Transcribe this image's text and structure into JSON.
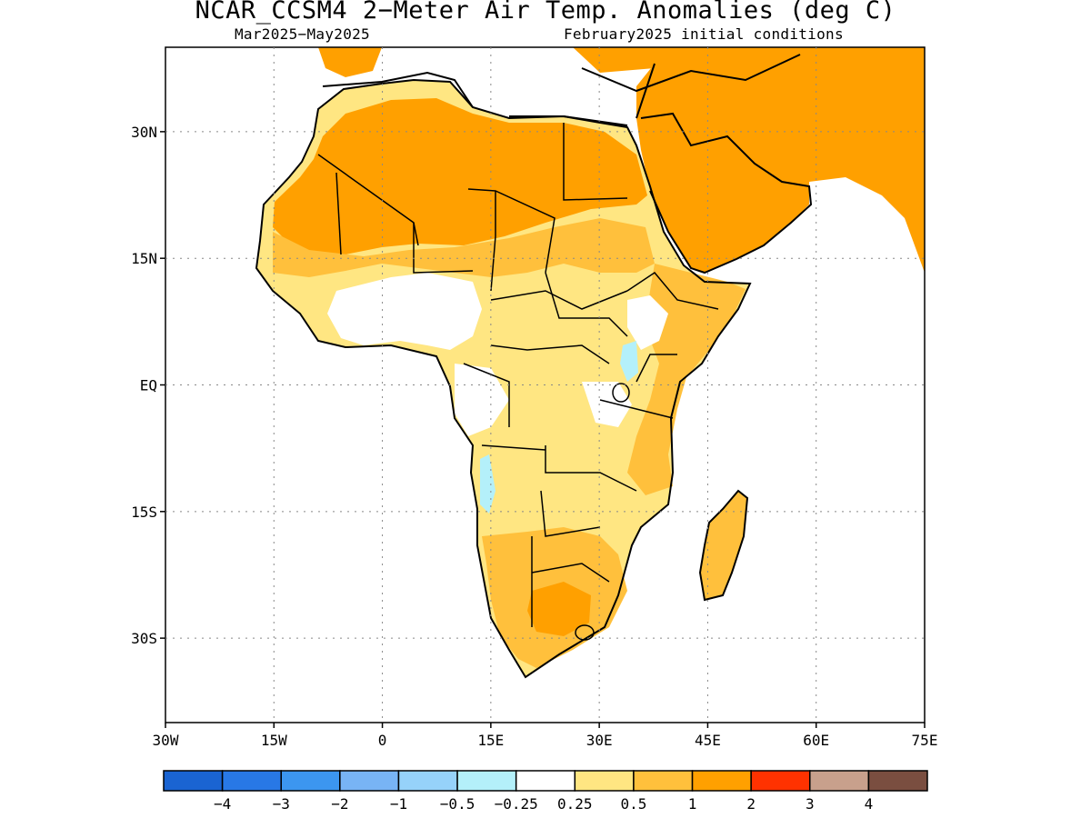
{
  "title": "NCAR_CCSM4 2−Meter Air Temp. Anomalies (deg C)",
  "subtitle_left": "Mar2025−May2025",
  "subtitle_right": "February2025 initial conditions",
  "map": {
    "region": "Africa and Arabian Peninsula",
    "lon_range": [
      -30,
      75
    ],
    "lat_range": [
      -40,
      40
    ],
    "lat_ticks": [
      {
        "lat": 30,
        "label": "30N"
      },
      {
        "lat": 15,
        "label": "15N"
      },
      {
        "lat": 0,
        "label": "EQ"
      },
      {
        "lat": -15,
        "label": "15S"
      },
      {
        "lat": -30,
        "label": "30S"
      }
    ],
    "lon_ticks": [
      {
        "lon": -30,
        "label": "30W"
      },
      {
        "lon": -15,
        "label": "15W"
      },
      {
        "lon": 0,
        "label": "0"
      },
      {
        "lon": 15,
        "label": "15E"
      },
      {
        "lon": 30,
        "label": "30E"
      },
      {
        "lon": 45,
        "label": "45E"
      },
      {
        "lon": 60,
        "label": "60E"
      },
      {
        "lon": 75,
        "label": "75E"
      }
    ]
  },
  "colorbar": {
    "colors": [
      "#1a64d2",
      "#2878e6",
      "#3c96f0",
      "#78b4f5",
      "#96d2fa",
      "#b4f0fa",
      "#ffffff",
      "#ffe682",
      "#ffc03c",
      "#ffa000",
      "#ff3200",
      "#c8a08c",
      "#7a4e40"
    ],
    "labels": [
      "−4",
      "−3",
      "−2",
      "−1",
      "−0.5",
      "−0.25",
      "0.25",
      "0.5",
      "1",
      "2",
      "3",
      "4"
    ]
  }
}
